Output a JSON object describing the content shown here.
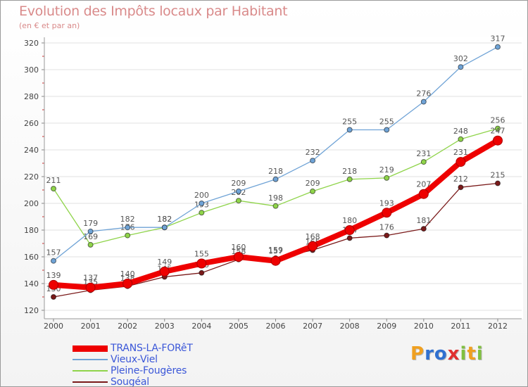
{
  "chart_data": {
    "type": "line",
    "title": "Evolution des Impôts locaux par Habitant",
    "subtitle": "(en € et par an)",
    "categories": [
      "2000",
      "2001",
      "2002",
      "2003",
      "2004",
      "2005",
      "2006",
      "2007",
      "2008",
      "2009",
      "2010",
      "2011",
      "2012"
    ],
    "ylim": [
      120,
      320
    ],
    "yticks": [
      120,
      140,
      160,
      180,
      200,
      220,
      240,
      260,
      280,
      300,
      320
    ],
    "grid": "horizontal",
    "series": [
      {
        "name": "Sougéal",
        "color": "#7a1a1a",
        "values": [
          130,
          135,
          138,
          145,
          148,
          158,
          159,
          165,
          174,
          176,
          181,
          212,
          215
        ]
      },
      {
        "name": "Pleine-Fougères",
        "color": "#8fd44a",
        "values": [
          211,
          169,
          176,
          182,
          193,
          202,
          198,
          209,
          218,
          219,
          231,
          248,
          256
        ]
      },
      {
        "name": "Vieux-Viel",
        "color": "#6fa3d6",
        "values": [
          157,
          179,
          182,
          182,
          200,
          209,
          218,
          232,
          255,
          255,
          276,
          302,
          317
        ]
      },
      {
        "name": "TRANS-LA-FORêT",
        "color": "#ee0000",
        "values": [
          139,
          137,
          140,
          149,
          155,
          160,
          157,
          168,
          180,
          193,
          207,
          231,
          247
        ]
      }
    ]
  },
  "legend": [
    {
      "label": "TRANS-LA-FORêT",
      "color": "#ee0000"
    },
    {
      "label": "Vieux-Viel",
      "color": "#6fa3d6"
    },
    {
      "label": "Pleine-Fougères",
      "color": "#8fd44a"
    },
    {
      "label": "Sougéal",
      "color": "#7a1a1a"
    }
  ],
  "logo": {
    "letters": [
      "P",
      "r",
      "o",
      "x",
      "i",
      "t",
      "i"
    ],
    "colors": [
      "#f0a020",
      "#3070d0",
      "#3070d0",
      "#e03030",
      "#80c040",
      "#f0a020",
      "#80c040"
    ]
  }
}
